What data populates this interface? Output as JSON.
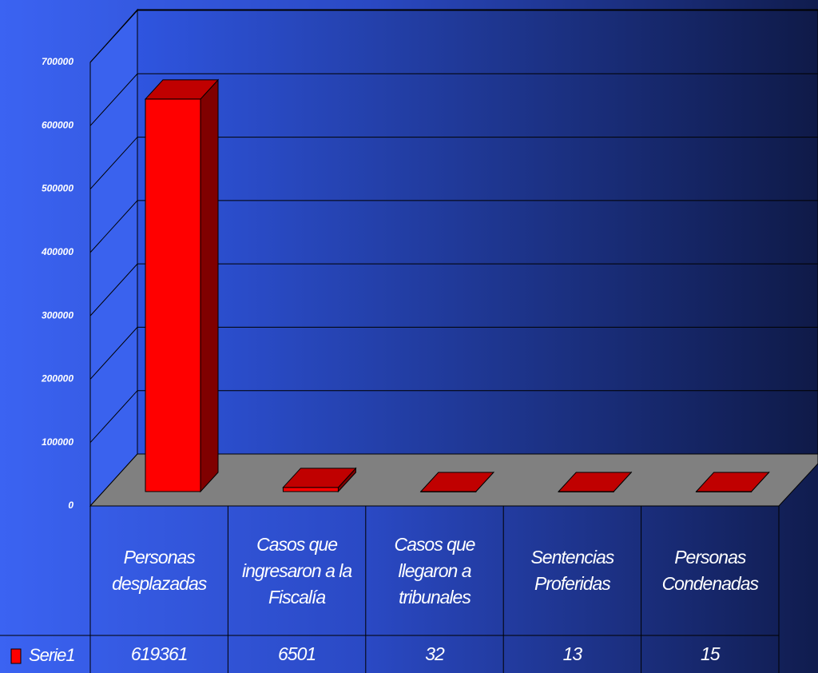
{
  "chart_data": {
    "type": "bar",
    "categories": [
      "Personas desplazadas",
      "Casos que ingresaron a la Fiscalía",
      "Casos que llegaron a tribunales",
      "Sentencias Proferidas",
      "Personas Condenadas"
    ],
    "series": [
      {
        "name": "Serie1",
        "color": "#ff0000",
        "values": [
          619361,
          6501,
          32,
          13,
          15
        ]
      }
    ],
    "ylim": [
      0,
      700000
    ],
    "yticks": [
      0,
      100000,
      200000,
      300000,
      400000,
      500000,
      600000,
      700000
    ],
    "grid": true
  }
}
